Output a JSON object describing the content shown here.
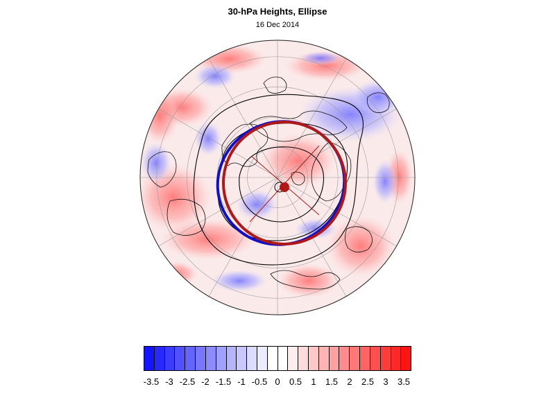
{
  "header": {
    "title": "30-hPa Heights, Ellipse",
    "date": "16 Dec 2014"
  },
  "map": {
    "projection": "polar-stereographic",
    "hemisphere": "northern",
    "overlays": [
      "height contours",
      "fitted ellipse (blue)",
      "fitted ellipse (red)",
      "ellipse axes",
      "pole"
    ]
  },
  "colors": {
    "ellipse_blue": "#1010c8",
    "ellipse_red": "#b01818",
    "contour": "#000000",
    "negative_max": "#0000ff",
    "positive_max": "#ff0000"
  },
  "colorbar": {
    "labels": [
      "-3.5",
      "-3",
      "-2.5",
      "-2",
      "-1.5",
      "-1",
      "-0.5",
      "0",
      "0.5",
      "1",
      "1.5",
      "2",
      "2.5",
      "3",
      "3.5"
    ],
    "swatches": [
      "#1414ff",
      "#2828ff",
      "#3c3cff",
      "#5050ff",
      "#6464ff",
      "#7878ff",
      "#8c8cff",
      "#a0a0ff",
      "#b4b4ff",
      "#c8c8ff",
      "#dcdcff",
      "#ececff",
      "#ffffff",
      "#ffffff",
      "#ffecec",
      "#ffdcdc",
      "#ffc8c8",
      "#ffb4b4",
      "#ffa0a0",
      "#ff8c8c",
      "#ff7878",
      "#ff6464",
      "#ff5050",
      "#ff3c3c",
      "#ff2828",
      "#ff1414"
    ]
  }
}
